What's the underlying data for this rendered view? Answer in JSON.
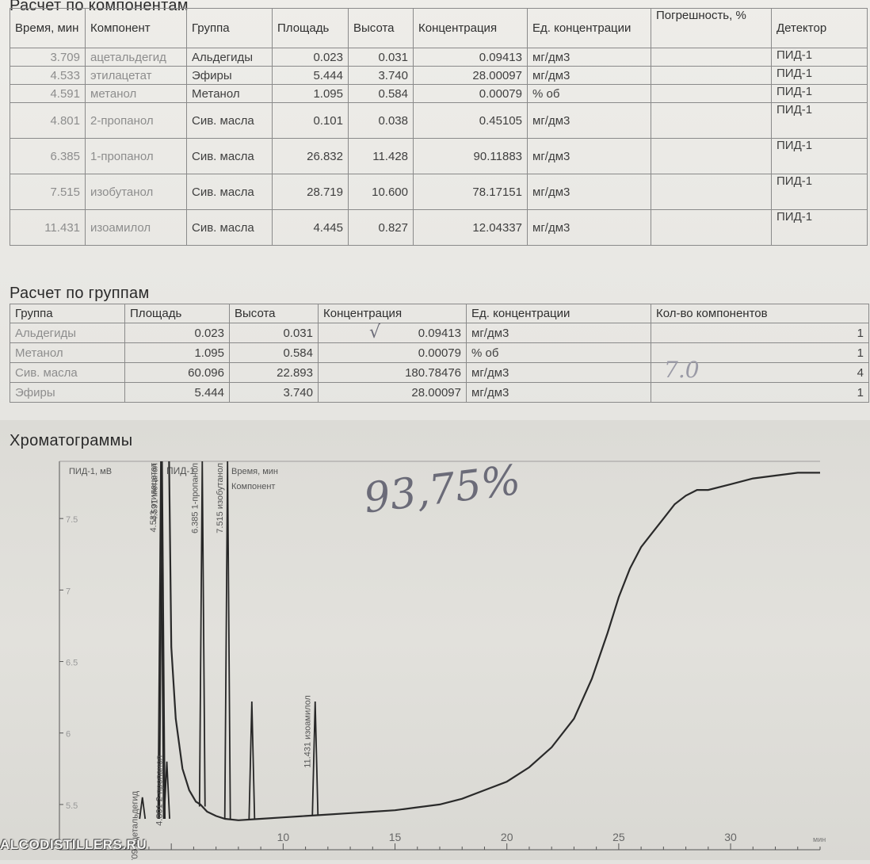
{
  "components": {
    "title": "Расчет по компонентам",
    "headers": [
      "Время, мин",
      "Компонент",
      "Группа",
      "Площадь",
      "Высота",
      "Концентрация",
      "Ед. концентрации",
      "Погрешность, %",
      "Детектор"
    ],
    "rows": [
      {
        "time": "3.709",
        "component": "ацетальдегид",
        "group": "Альдегиды",
        "area": "0.023",
        "height": "0.031",
        "conc": "0.09413",
        "unit": "мг/дм3",
        "error": "",
        "detector": "ПИД-1"
      },
      {
        "time": "4.533",
        "component": "этилацетат",
        "group": "Эфиры",
        "area": "5.444",
        "height": "3.740",
        "conc": "28.00097",
        "unit": "мг/дм3",
        "error": "",
        "detector": "ПИД-1"
      },
      {
        "time": "4.591",
        "component": "метанол",
        "group": "Метанол",
        "area": "1.095",
        "height": "0.584",
        "conc": "0.00079",
        "unit": "% об",
        "error": "",
        "detector": "ПИД-1"
      },
      {
        "time": "4.801",
        "component": "2-пропанол",
        "group": "Сив. масла",
        "area": "0.101",
        "height": "0.038",
        "conc": "0.45105",
        "unit": "мг/дм3",
        "error": "",
        "detector": "ПИД-1"
      },
      {
        "time": "6.385",
        "component": "1-пропанол",
        "group": "Сив. масла",
        "area": "26.832",
        "height": "11.428",
        "conc": "90.11883",
        "unit": "мг/дм3",
        "error": "",
        "detector": "ПИД-1"
      },
      {
        "time": "7.515",
        "component": "изобутанол",
        "group": "Сив. масла",
        "area": "28.719",
        "height": "10.600",
        "conc": "78.17151",
        "unit": "мг/дм3",
        "error": "",
        "detector": "ПИД-1"
      },
      {
        "time": "11.431",
        "component": "изоамилол",
        "group": "Сив. масла",
        "area": "4.445",
        "height": "0.827",
        "conc": "12.04337",
        "unit": "мг/дм3",
        "error": "",
        "detector": "ПИД-1"
      }
    ]
  },
  "groups": {
    "title": "Расчет по группам",
    "headers": [
      "Группа",
      "Площадь",
      "Высота",
      "Концентрация",
      "Ед. концентрации",
      "Кол-во компонентов"
    ],
    "rows": [
      {
        "group": "Альдегиды",
        "area": "0.023",
        "height": "0.031",
        "conc": "0.09413",
        "unit": "мг/дм3",
        "count": "1"
      },
      {
        "group": "Метанол",
        "area": "1.095",
        "height": "0.584",
        "conc": "0.00079",
        "unit": "% об",
        "count": "1"
      },
      {
        "group": "Сив. масла",
        "area": "60.096",
        "height": "22.893",
        "conc": "180.78476",
        "unit": "мг/дм3",
        "count": "4"
      },
      {
        "group": "Эфиры",
        "area": "5.444",
        "height": "3.740",
        "conc": "28.00097",
        "unit": "мг/дм3",
        "count": "1"
      }
    ],
    "check_mark": "√",
    "margin_note": "7.0"
  },
  "chromatogram": {
    "title": "Хроматограммы",
    "handwritten_note": "93,75%",
    "watermark": "ALCODISTILLERS.RU"
  },
  "chart_data": {
    "type": "line",
    "ylabel": "ПИД-1, мВ",
    "legend": [
      "ПИД-1",
      "Время, мин",
      "Компонент"
    ],
    "xunit": "мин",
    "xlim": [
      0,
      34
    ],
    "ylim": [
      5.35,
      7.9
    ],
    "xticks": [
      10,
      15,
      20,
      25,
      30
    ],
    "yticks": [
      5.5,
      6,
      6.5,
      7,
      7.5
    ],
    "ytick_labels": [
      "5.5",
      "6",
      "6.5",
      "7",
      "7.5"
    ],
    "baseline": [
      [
        4.9,
        7.9
      ],
      [
        5.0,
        6.6
      ],
      [
        5.2,
        6.1
      ],
      [
        5.5,
        5.75
      ],
      [
        5.8,
        5.6
      ],
      [
        6.1,
        5.52
      ],
      [
        6.3,
        5.5
      ],
      [
        6.6,
        5.45
      ],
      [
        7.0,
        5.42
      ],
      [
        7.4,
        5.4
      ],
      [
        8.0,
        5.39
      ],
      [
        9.0,
        5.4
      ],
      [
        10.0,
        5.41
      ],
      [
        11.0,
        5.42
      ],
      [
        12.0,
        5.43
      ],
      [
        13.0,
        5.44
      ],
      [
        14.0,
        5.45
      ],
      [
        15.0,
        5.46
      ],
      [
        16.0,
        5.48
      ],
      [
        17.0,
        5.5
      ],
      [
        18.0,
        5.54
      ],
      [
        19.0,
        5.6
      ],
      [
        20.0,
        5.66
      ],
      [
        21.0,
        5.76
      ],
      [
        22.0,
        5.9
      ],
      [
        23.0,
        6.1
      ],
      [
        23.8,
        6.38
      ],
      [
        24.5,
        6.7
      ],
      [
        25.0,
        6.95
      ],
      [
        25.5,
        7.15
      ],
      [
        26.0,
        7.3
      ],
      [
        26.5,
        7.4
      ],
      [
        27.0,
        7.5
      ],
      [
        27.5,
        7.6
      ],
      [
        28.0,
        7.66
      ],
      [
        28.5,
        7.7
      ],
      [
        29.0,
        7.7
      ],
      [
        30.0,
        7.74
      ],
      [
        31.0,
        7.78
      ],
      [
        32.0,
        7.8
      ],
      [
        33.0,
        7.82
      ],
      [
        34.0,
        7.82
      ]
    ],
    "peaks": [
      {
        "rt": 3.709,
        "label": "3.709 ацетальдегид",
        "top": 5.55
      },
      {
        "rt": 4.533,
        "label": "4.533 этилацетат",
        "top": 7.9
      },
      {
        "rt": 4.591,
        "label": "4.591 метанол",
        "top": 7.9
      },
      {
        "rt": 4.801,
        "label": "4.801 2-пропанол",
        "top": 5.8
      },
      {
        "rt": 6.385,
        "label": "6.385 1-пропанол",
        "top": 7.9
      },
      {
        "rt": 7.515,
        "label": "7.515 изобутанол",
        "top": 7.9
      },
      {
        "rt": 8.6,
        "label": "",
        "top": 6.22
      },
      {
        "rt": 11.431,
        "label": "11.431 изоамилол",
        "top": 6.22
      }
    ]
  }
}
